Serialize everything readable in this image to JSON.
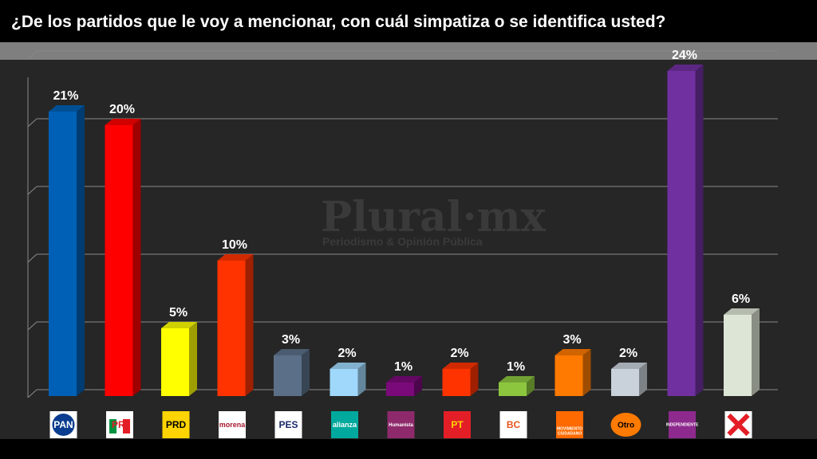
{
  "title": "¿De los partidos que le voy a mencionar, con cuál simpatiza o se identifica usted?",
  "watermark": {
    "brand": "Plural·mx",
    "tagline": "Periodismo & Opinión Pública"
  },
  "chart_data": {
    "type": "bar",
    "title": "¿De los partidos que le voy a mencionar, con cuál simpatiza o se identifica usted?",
    "ylim": [
      0,
      25
    ],
    "grid": true,
    "categories": [
      "PAN",
      "PRI",
      "PRD",
      "morena",
      "PES",
      "alianza",
      "Humanista",
      "PT",
      "BC",
      "MOVIMIENTO CIUDADANO",
      "Otro",
      "INDEPENDIENTE",
      "Ninguno"
    ],
    "values": [
      21,
      20,
      5,
      10,
      3,
      2,
      1,
      2,
      1,
      3,
      2,
      24,
      6
    ],
    "labels": [
      "21%",
      "20%",
      "5%",
      "10%",
      "3%",
      "2%",
      "1%",
      "2%",
      "1%",
      "3%",
      "2%",
      "24%",
      "6%"
    ],
    "colors": [
      "#0060b6",
      "#ff0000",
      "#ffff00",
      "#ff3300",
      "#5b7088",
      "#9fd8fb",
      "#7a0a7a",
      "#ff3300",
      "#8cc63f",
      "#ff7a00",
      "#c9d1da",
      "#7030a0",
      "#dde5d6"
    ]
  },
  "logos": [
    {
      "name": "pan-logo",
      "text": "PAN",
      "bg": "#ffffff",
      "fg": "#0a3d8f"
    },
    {
      "name": "pri-logo",
      "text": "PRI",
      "bg": "#ffffff",
      "fg": "#e41e26"
    },
    {
      "name": "prd-logo",
      "text": "PRD",
      "bg": "#ffd400",
      "fg": "#000000"
    },
    {
      "name": "morena-logo",
      "text": "morena",
      "bg": "#ffffff",
      "fg": "#a6192e"
    },
    {
      "name": "pes-logo",
      "text": "PES",
      "bg": "#ffffff",
      "fg": "#1b2a6b"
    },
    {
      "name": "alianza-logo",
      "text": "alianza",
      "bg": "#00a99d",
      "fg": "#ffffff"
    },
    {
      "name": "humanista-logo",
      "text": "Humanista",
      "bg": "#8e2a6b",
      "fg": "#ffffff"
    },
    {
      "name": "pt-logo",
      "text": "PT",
      "bg": "#e41e26",
      "fg": "#ffd400"
    },
    {
      "name": "bc-logo",
      "text": "BC",
      "bg": "#ffffff",
      "fg": "#e5541e"
    },
    {
      "name": "mc-logo",
      "text": "MOVIMIENTO CIUDADANO",
      "bg": "#ff6a00",
      "fg": "#ffffff"
    },
    {
      "name": "otro-logo",
      "text": "Otro",
      "bg": "#ff7a00",
      "fg": "#000000"
    },
    {
      "name": "independiente-logo",
      "text": "INDEPENDIENTE",
      "bg": "#8e2a8e",
      "fg": "#ffffff"
    },
    {
      "name": "ninguno-logo",
      "text": "",
      "bg": "#ffffff",
      "fg": "#e41e26"
    }
  ]
}
